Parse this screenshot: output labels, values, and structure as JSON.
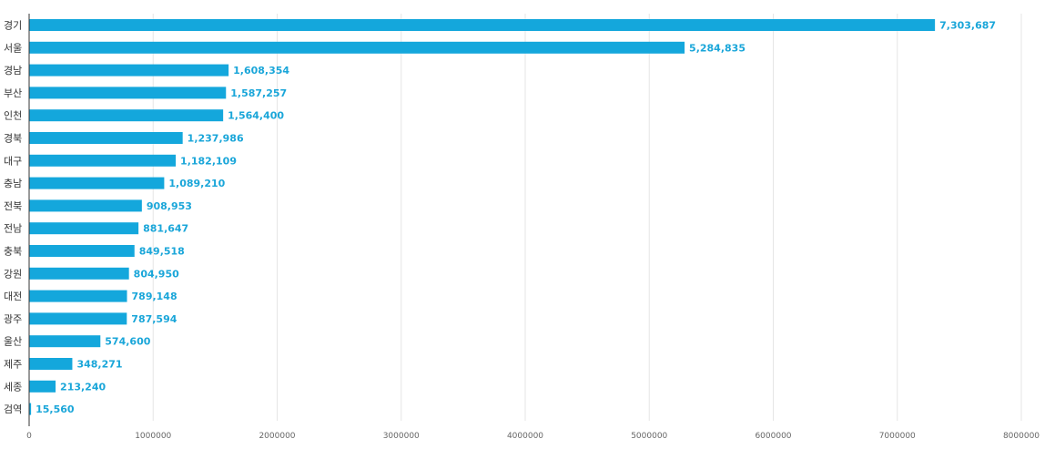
{
  "colors": {
    "bar": "#14a7dc",
    "value_label": "#1aa6d9",
    "grid": "#e6e6e6"
  },
  "chart_data": {
    "type": "bar",
    "orientation": "horizontal",
    "title": "",
    "xlabel": "",
    "ylabel": "",
    "xlim": [
      0,
      8000000
    ],
    "grid": true,
    "legend": "none",
    "ticks": [
      {
        "value": 0,
        "label": "0"
      },
      {
        "value": 1000000,
        "label": "1000000"
      },
      {
        "value": 2000000,
        "label": "2000000"
      },
      {
        "value": 3000000,
        "label": "3000000"
      },
      {
        "value": 4000000,
        "label": "4000000"
      },
      {
        "value": 5000000,
        "label": "5000000"
      },
      {
        "value": 6000000,
        "label": "6000000"
      },
      {
        "value": 7000000,
        "label": "7000000"
      },
      {
        "value": 8000000,
        "label": "8000000"
      }
    ],
    "categories": [
      "경기",
      "서울",
      "경남",
      "부산",
      "인천",
      "경북",
      "대구",
      "충남",
      "전북",
      "전남",
      "충북",
      "강원",
      "대전",
      "광주",
      "울산",
      "제주",
      "세종",
      "검역"
    ],
    "values": [
      7303687,
      5284835,
      1608354,
      1587257,
      1564400,
      1237986,
      1182109,
      1089210,
      908953,
      881647,
      849518,
      804950,
      789148,
      787594,
      574600,
      348271,
      213240,
      15560
    ],
    "value_labels": [
      "7,303,687",
      "5,284,835",
      "1,608,354",
      "1,587,257",
      "1,564,400",
      "1,237,986",
      "1,182,109",
      "1,089,210",
      "908,953",
      "881,647",
      "849,518",
      "804,950",
      "789,148",
      "787,594",
      "574,600",
      "348,271",
      "213,240",
      "15,560"
    ]
  }
}
